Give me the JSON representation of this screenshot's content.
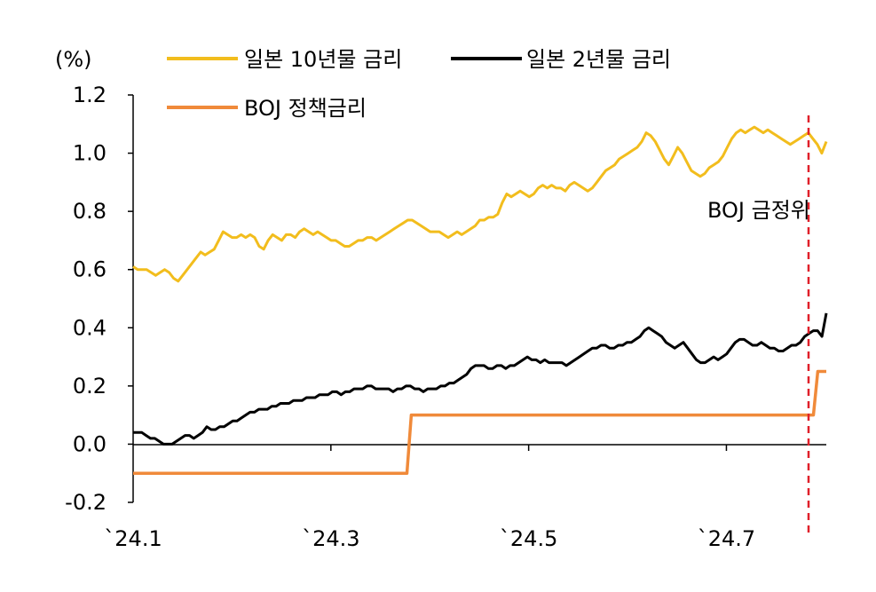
{
  "chart_data": {
    "type": "line",
    "unit_label": "(%)",
    "ylim": [
      -0.2,
      1.2
    ],
    "y_ticks": [
      "1.2",
      "1.0",
      "0.8",
      "0.6",
      "0.4",
      "0.2",
      "0.0",
      "-0.2"
    ],
    "x_ticks": [
      "`24.1",
      "`24.3",
      "`24.5",
      "`24.7"
    ],
    "grid": false,
    "legend_position": "top",
    "annotation": {
      "label": "BOJ 금정위",
      "color": "#e0202a"
    },
    "series": [
      {
        "name": "일본 10년물 금리",
        "color": "#f2bd1d",
        "values": [
          0.61,
          0.6,
          0.6,
          0.6,
          0.59,
          0.58,
          0.59,
          0.6,
          0.59,
          0.57,
          0.56,
          0.58,
          0.6,
          0.62,
          0.64,
          0.66,
          0.65,
          0.66,
          0.67,
          0.7,
          0.73,
          0.72,
          0.71,
          0.71,
          0.72,
          0.71,
          0.72,
          0.71,
          0.68,
          0.67,
          0.7,
          0.72,
          0.71,
          0.7,
          0.72,
          0.72,
          0.71,
          0.73,
          0.74,
          0.73,
          0.72,
          0.73,
          0.72,
          0.71,
          0.7,
          0.7,
          0.69,
          0.68,
          0.68,
          0.69,
          0.7,
          0.7,
          0.71,
          0.71,
          0.7,
          0.71,
          0.72,
          0.73,
          0.74,
          0.75,
          0.76,
          0.77,
          0.77,
          0.76,
          0.75,
          0.74,
          0.73,
          0.73,
          0.73,
          0.72,
          0.71,
          0.72,
          0.73,
          0.72,
          0.73,
          0.74,
          0.75,
          0.77,
          0.77,
          0.78,
          0.78,
          0.79,
          0.83,
          0.86,
          0.85,
          0.86,
          0.87,
          0.86,
          0.85,
          0.86,
          0.88,
          0.89,
          0.88,
          0.89,
          0.88,
          0.88,
          0.87,
          0.89,
          0.9,
          0.89,
          0.88,
          0.87,
          0.88,
          0.9,
          0.92,
          0.94,
          0.95,
          0.96,
          0.98,
          0.99,
          1.0,
          1.01,
          1.02,
          1.04,
          1.07,
          1.06,
          1.04,
          1.01,
          0.98,
          0.96,
          0.99,
          1.02,
          1.0,
          0.97,
          0.94,
          0.93,
          0.92,
          0.93,
          0.95,
          0.96,
          0.97,
          0.99,
          1.02,
          1.05,
          1.07,
          1.08,
          1.07,
          1.08,
          1.09,
          1.08,
          1.07,
          1.08,
          1.07,
          1.06,
          1.05,
          1.04,
          1.03,
          1.04,
          1.05,
          1.06,
          1.07,
          1.05,
          1.03,
          1.0,
          1.04
        ]
      },
      {
        "name": "일본 2년물 금리",
        "color": "#000000",
        "values": [
          0.04,
          0.04,
          0.04,
          0.03,
          0.02,
          0.02,
          0.01,
          0.0,
          0.0,
          0.0,
          0.01,
          0.02,
          0.03,
          0.03,
          0.02,
          0.03,
          0.04,
          0.06,
          0.05,
          0.05,
          0.06,
          0.06,
          0.07,
          0.08,
          0.08,
          0.09,
          0.1,
          0.11,
          0.11,
          0.12,
          0.12,
          0.12,
          0.13,
          0.13,
          0.14,
          0.14,
          0.14,
          0.15,
          0.15,
          0.15,
          0.16,
          0.16,
          0.16,
          0.17,
          0.17,
          0.17,
          0.18,
          0.18,
          0.17,
          0.18,
          0.18,
          0.19,
          0.19,
          0.19,
          0.2,
          0.2,
          0.19,
          0.19,
          0.19,
          0.19,
          0.18,
          0.19,
          0.19,
          0.2,
          0.2,
          0.19,
          0.19,
          0.18,
          0.19,
          0.19,
          0.19,
          0.2,
          0.2,
          0.21,
          0.21,
          0.22,
          0.23,
          0.24,
          0.26,
          0.27,
          0.27,
          0.27,
          0.26,
          0.26,
          0.27,
          0.27,
          0.26,
          0.27,
          0.27,
          0.28,
          0.29,
          0.3,
          0.29,
          0.29,
          0.28,
          0.29,
          0.28,
          0.28,
          0.28,
          0.28,
          0.27,
          0.28,
          0.29,
          0.3,
          0.31,
          0.32,
          0.33,
          0.33,
          0.34,
          0.34,
          0.33,
          0.33,
          0.34,
          0.34,
          0.35,
          0.35,
          0.36,
          0.37,
          0.39,
          0.4,
          0.39,
          0.38,
          0.37,
          0.35,
          0.34,
          0.33,
          0.34,
          0.35,
          0.33,
          0.31,
          0.29,
          0.28,
          0.28,
          0.29,
          0.3,
          0.29,
          0.3,
          0.31,
          0.33,
          0.35,
          0.36,
          0.36,
          0.35,
          0.34,
          0.34,
          0.35,
          0.34,
          0.33,
          0.33,
          0.32,
          0.32,
          0.33,
          0.34,
          0.34,
          0.35,
          0.37,
          0.38,
          0.39,
          0.39,
          0.37,
          0.45
        ]
      },
      {
        "name": "BOJ 정책금리",
        "color": "#f08a3a",
        "values": [
          -0.1,
          -0.1,
          -0.1,
          -0.1,
          -0.1,
          -0.1,
          -0.1,
          -0.1,
          -0.1,
          -0.1,
          -0.1,
          -0.1,
          -0.1,
          -0.1,
          -0.1,
          -0.1,
          -0.1,
          -0.1,
          -0.1,
          -0.1,
          -0.1,
          -0.1,
          -0.1,
          -0.1,
          -0.1,
          -0.1,
          -0.1,
          -0.1,
          -0.1,
          -0.1,
          -0.1,
          -0.1,
          -0.1,
          -0.1,
          -0.1,
          -0.1,
          -0.1,
          -0.1,
          -0.1,
          -0.1,
          -0.1,
          -0.1,
          -0.1,
          -0.1,
          -0.1,
          -0.1,
          -0.1,
          -0.1,
          -0.1,
          -0.1,
          -0.1,
          -0.1,
          -0.1,
          -0.1,
          -0.1,
          -0.1,
          -0.1,
          -0.1,
          -0.1,
          -0.1,
          -0.1,
          -0.1,
          -0.1,
          -0.1,
          -0.1,
          0.1,
          0.1,
          0.1,
          0.1,
          0.1,
          0.1,
          0.1,
          0.1,
          0.1,
          0.1,
          0.1,
          0.1,
          0.1,
          0.1,
          0.1,
          0.1,
          0.1,
          0.1,
          0.1,
          0.1,
          0.1,
          0.1,
          0.1,
          0.1,
          0.1,
          0.1,
          0.1,
          0.1,
          0.1,
          0.1,
          0.1,
          0.1,
          0.1,
          0.1,
          0.1,
          0.1,
          0.1,
          0.1,
          0.1,
          0.1,
          0.1,
          0.1,
          0.1,
          0.1,
          0.1,
          0.1,
          0.1,
          0.1,
          0.1,
          0.1,
          0.1,
          0.1,
          0.1,
          0.1,
          0.1,
          0.1,
          0.1,
          0.1,
          0.1,
          0.1,
          0.1,
          0.1,
          0.1,
          0.1,
          0.1,
          0.1,
          0.1,
          0.1,
          0.1,
          0.1,
          0.1,
          0.1,
          0.1,
          0.1,
          0.1,
          0.1,
          0.1,
          0.1,
          0.1,
          0.1,
          0.1,
          0.1,
          0.1,
          0.1,
          0.1,
          0.1,
          0.1,
          0.1,
          0.1,
          0.1,
          0.1,
          0.1,
          0.1,
          0.1,
          0.1,
          0.25,
          0.25,
          0.25
        ]
      }
    ]
  }
}
